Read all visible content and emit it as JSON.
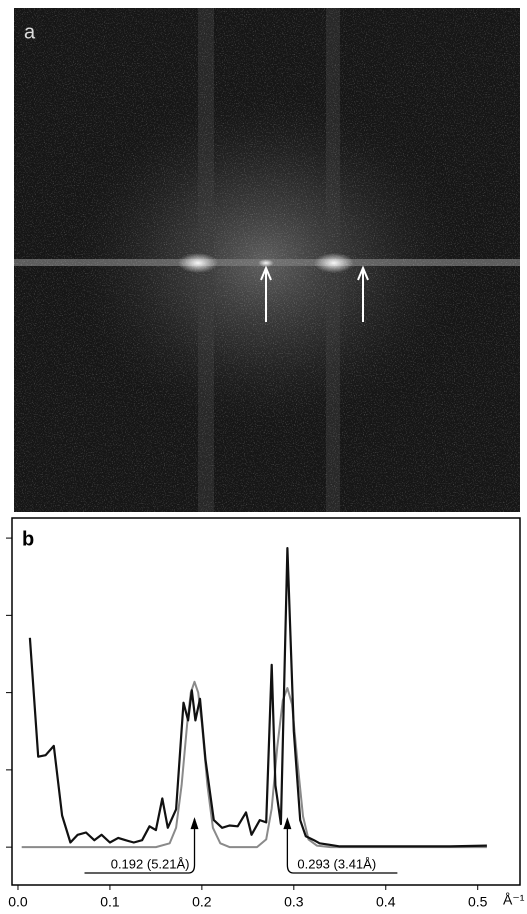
{
  "image": {
    "label": "a"
  },
  "chart_data": {
    "type": "line",
    "panel_label": "b",
    "x_unit": "Å⁻¹",
    "xlim": [
      -0.0065,
      0.546
    ],
    "xticks": [
      {
        "value": 0,
        "label": "0.0"
      },
      0.1,
      0.2,
      0.3,
      0.4,
      0.5
    ],
    "ylim": [
      -0.49,
      4.26
    ],
    "yticks": [
      0,
      1,
      2,
      3,
      4
    ],
    "series": [
      {
        "color": "#111111",
        "x": [
          0.013,
          0.022,
          0.03,
          0.039,
          0.048,
          0.057,
          0.065,
          0.074,
          0.083,
          0.091,
          0.1,
          0.109,
          0.117,
          0.126,
          0.135,
          0.143,
          0.15,
          0.157,
          0.163,
          0.172,
          0.18,
          0.185,
          0.189,
          0.193,
          0.198,
          0.204,
          0.213,
          0.222,
          0.23,
          0.239,
          0.248,
          0.254,
          0.263,
          0.27,
          0.276,
          0.28,
          0.286,
          0.293,
          0.3,
          0.307,
          0.313,
          0.322,
          0.328,
          0.339,
          0.35,
          0.372,
          0.415,
          0.47,
          0.51
        ],
        "values": [
          2.71,
          1.17,
          1.19,
          1.31,
          0.41,
          0.06,
          0.16,
          0.19,
          0.09,
          0.16,
          0.06,
          0.12,
          0.09,
          0.06,
          0.09,
          0.27,
          0.22,
          0.63,
          0.25,
          0.49,
          1.87,
          1.64,
          2.03,
          1.64,
          1.92,
          1.13,
          0.35,
          0.25,
          0.28,
          0.27,
          0.45,
          0.16,
          0.35,
          0.32,
          2.36,
          0.8,
          0.3,
          3.87,
          1.5,
          0.35,
          0.14,
          0.09,
          0.05,
          0.03,
          0.01,
          0.01,
          0.01,
          0.01,
          0.02
        ]
      },
      {
        "color": "#8a8a8a",
        "x": [
          0.004,
          0.15,
          0.165,
          0.172,
          0.178,
          0.184,
          0.188,
          0.192,
          0.196,
          0.2,
          0.206,
          0.212,
          0.22,
          0.23,
          0.26,
          0.27,
          0.276,
          0.282,
          0.288,
          0.293,
          0.298,
          0.304,
          0.31,
          0.316,
          0.325,
          0.34,
          0.51
        ],
        "values": [
          0,
          0,
          0.05,
          0.25,
          0.8,
          1.6,
          2.0,
          2.14,
          2.0,
          1.6,
          0.8,
          0.25,
          0.05,
          0,
          0,
          0.1,
          0.5,
          1.3,
          1.9,
          2.06,
          1.85,
          1.1,
          0.4,
          0.1,
          0.02,
          0,
          0
        ]
      }
    ],
    "annotations": [
      {
        "text": "0.192 (5.21Å)",
        "x": 0.192
      },
      {
        "text": "0.293 (3.41Å)",
        "x": 0.293
      }
    ]
  }
}
